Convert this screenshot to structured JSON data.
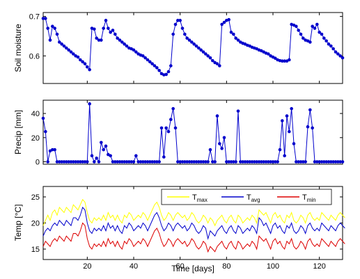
{
  "chart_data": [
    {
      "type": "line",
      "ylabel": "Soil moisture",
      "xlim": [
        1,
        130
      ],
      "ylim": [
        0.53,
        0.71
      ],
      "yticks": [
        0.6,
        0.7
      ],
      "yticklabels": [
        "0.6",
        "0.7"
      ],
      "xticks": [
        20,
        40,
        60,
        80,
        100,
        120
      ],
      "color": "#0000cc",
      "markers": true,
      "series": [
        {
          "values": [
            0.695,
            0.695,
            0.67,
            0.64,
            0.675,
            0.67,
            0.655,
            0.635,
            0.63,
            0.625,
            0.62,
            0.615,
            0.61,
            0.605,
            0.6,
            0.597,
            0.59,
            0.585,
            0.58,
            0.572,
            0.565,
            0.67,
            0.668,
            0.645,
            0.64,
            0.64,
            0.67,
            0.69,
            0.67,
            0.66,
            0.665,
            0.655,
            0.645,
            0.64,
            0.635,
            0.63,
            0.625,
            0.62,
            0.618,
            0.615,
            0.61,
            0.605,
            0.602,
            0.6,
            0.595,
            0.59,
            0.585,
            0.58,
            0.575,
            0.57,
            0.563,
            0.555,
            0.552,
            0.553,
            0.56,
            0.575,
            0.655,
            0.68,
            0.69,
            0.69,
            0.67,
            0.655,
            0.645,
            0.64,
            0.635,
            0.63,
            0.625,
            0.62,
            0.615,
            0.61,
            0.605,
            0.6,
            0.595,
            0.588,
            0.583,
            0.58,
            0.575,
            0.68,
            0.685,
            0.69,
            0.692,
            0.66,
            0.655,
            0.645,
            0.64,
            0.635,
            0.632,
            0.63,
            0.627,
            0.625,
            0.622,
            0.62,
            0.618,
            0.615,
            0.613,
            0.61,
            0.607,
            0.605,
            0.6,
            0.597,
            0.594,
            0.59,
            0.588,
            0.587,
            0.587,
            0.587,
            0.59,
            0.68,
            0.678,
            0.675,
            0.665,
            0.655,
            0.645,
            0.64,
            0.638,
            0.635,
            0.675,
            0.67,
            0.68,
            0.66,
            0.655,
            0.645,
            0.638,
            0.63,
            0.625,
            0.618,
            0.61,
            0.605,
            0.6,
            0.595
          ]
        }
      ]
    },
    {
      "type": "line",
      "ylabel": "Precip [mm]",
      "xlim": [
        1,
        130
      ],
      "ylim": [
        -2,
        51
      ],
      "yticks": [
        0,
        20,
        40
      ],
      "yticklabels": [
        "0",
        "20",
        "40"
      ],
      "xticks": [
        20,
        40,
        60,
        80,
        100,
        120
      ],
      "color": "#0000cc",
      "markers": true,
      "series": [
        {
          "values": [
            36,
            25,
            0,
            9,
            10,
            10,
            0,
            0,
            0,
            0,
            0,
            0,
            0,
            0,
            0,
            0,
            0,
            0,
            0,
            0,
            48,
            5,
            0,
            3,
            0,
            16,
            10,
            13,
            6,
            5,
            0,
            0,
            0,
            0,
            0,
            0,
            0,
            0,
            0,
            0,
            5,
            0,
            0,
            0,
            0,
            0,
            0,
            0,
            0,
            0,
            0,
            28,
            4,
            28,
            25,
            35,
            44,
            28,
            0,
            0,
            0,
            0,
            0,
            0,
            0,
            0,
            0,
            0,
            0,
            0,
            0,
            0,
            10,
            0,
            0,
            38,
            15,
            11,
            20,
            0,
            0,
            0,
            0,
            0,
            42,
            0,
            0,
            0,
            0,
            0,
            0,
            0,
            0,
            0,
            0,
            0,
            0,
            0,
            0,
            0,
            0,
            0,
            10,
            34,
            5,
            38,
            25,
            44,
            15,
            0,
            0,
            0,
            0,
            0,
            29,
            43,
            28,
            0,
            0,
            0,
            0,
            0,
            0,
            0,
            0,
            0,
            0,
            0,
            0,
            0
          ]
        }
      ]
    },
    {
      "type": "line",
      "xlabel": "Time [days]",
      "ylabel": "Temp [°C]",
      "xlim": [
        1,
        130
      ],
      "ylim": [
        13,
        27
      ],
      "yticks": [
        15,
        20,
        25
      ],
      "yticklabels": [
        "15",
        "20",
        "25"
      ],
      "xticks": [
        20,
        40,
        60,
        80,
        100,
        120
      ],
      "xticklabels": [
        "20",
        "40",
        "60",
        "80",
        "100",
        "120"
      ],
      "legend_position": "top-right",
      "series": [
        {
          "name": "T",
          "sub": "max",
          "color": "#ffff00",
          "values": [
            19.5,
            20.5,
            21.5,
            20.5,
            22,
            22.5,
            21.5,
            23,
            22.5,
            22,
            23,
            22.5,
            22,
            23.5,
            23,
            22.5,
            23.5,
            24.5,
            24,
            22,
            20.5,
            20,
            21,
            20.5,
            21,
            20.5,
            21.5,
            20.5,
            22,
            21,
            21.5,
            20.5,
            21.5,
            20.5,
            20,
            21.5,
            21,
            22,
            21.5,
            20.5,
            21,
            21.5,
            21,
            22,
            21.5,
            20.5,
            21.5,
            22.5,
            23.5,
            24,
            23,
            21.5,
            20.5,
            21,
            22,
            21.5,
            20.5,
            21.5,
            22,
            21.5,
            21,
            21.5,
            20.5,
            21,
            22,
            21.5,
            20.5,
            20,
            20.5,
            21.5,
            21,
            20,
            21,
            20.5,
            19.5,
            20.5,
            21,
            21.5,
            20.5,
            20,
            21,
            21.5,
            20.5,
            20,
            21.5,
            21,
            20,
            20.5,
            21,
            20.5,
            21.5,
            21,
            20,
            22.5,
            22,
            21.5,
            22,
            21,
            20,
            21.5,
            22,
            21,
            21.5,
            20.5,
            20,
            21.5,
            21,
            22,
            20.5,
            20,
            20.5,
            21.5,
            21,
            20,
            21.5,
            22,
            21,
            20.5,
            21,
            20.5,
            22,
            21.5,
            21,
            20.5,
            21.5,
            21,
            20.5,
            21.5,
            22,
            21.5,
            21
          ]
        },
        {
          "name": "T",
          "sub": "avg",
          "color": "#0000cc",
          "values": [
            17.5,
            18.5,
            19,
            18.5,
            19.5,
            20,
            19.5,
            20.5,
            20,
            19.5,
            20.5,
            20,
            19.5,
            21,
            21,
            20.5,
            21.5,
            23,
            22.5,
            20,
            18.5,
            18,
            19,
            18.5,
            19,
            18.5,
            19.5,
            18.5,
            20,
            19,
            19.5,
            18.5,
            19.5,
            18.5,
            18,
            19.5,
            19,
            20,
            19.5,
            18.5,
            19,
            19.5,
            19,
            20,
            19.5,
            18.5,
            19.5,
            20.5,
            21.5,
            22,
            21,
            19.5,
            18.5,
            19,
            20,
            19.5,
            18.5,
            19.5,
            20,
            19.5,
            19,
            19.5,
            18.5,
            19,
            20,
            19.5,
            18.5,
            18,
            18.5,
            19.5,
            19,
            17,
            18.5,
            18,
            17.5,
            18.5,
            19,
            19.5,
            18.5,
            18,
            19,
            19.5,
            18.5,
            18,
            19.5,
            19,
            18,
            18.5,
            19,
            18.5,
            19.5,
            19,
            18,
            21,
            20.5,
            19.5,
            20,
            19,
            18,
            19.5,
            20,
            19,
            19.5,
            18.5,
            18,
            19.5,
            19,
            20,
            18.5,
            18,
            18.5,
            19.5,
            19,
            18,
            19.5,
            20,
            19,
            18.5,
            19,
            18.5,
            20,
            19.5,
            19,
            18.5,
            19.5,
            19,
            18.5,
            19.5,
            20,
            19.5,
            19
          ]
        },
        {
          "name": "T",
          "sub": "min",
          "color": "#dd0000",
          "values": [
            15.5,
            16.5,
            16,
            15.5,
            16.5,
            17,
            16.5,
            17.5,
            17,
            16.5,
            17.5,
            17,
            16.5,
            18,
            18,
            17.5,
            18.5,
            20,
            19.5,
            17,
            15.5,
            15,
            16,
            15.5,
            16,
            15.5,
            16.5,
            15.5,
            17,
            16,
            16.5,
            15.5,
            16.5,
            15.5,
            15,
            16.5,
            16,
            17,
            16.5,
            15.5,
            16,
            16.5,
            16,
            17,
            16.5,
            15.5,
            16.5,
            17.5,
            18.5,
            19,
            18,
            16.5,
            15.5,
            16,
            17,
            16.5,
            15.5,
            16.5,
            17,
            16.5,
            16,
            16.5,
            15.5,
            16,
            17,
            16.5,
            15.5,
            15,
            15.5,
            16.5,
            16,
            14.5,
            15.5,
            15,
            14.5,
            15.5,
            16,
            16.5,
            15.5,
            15,
            16,
            16.5,
            15.5,
            15,
            16.5,
            16,
            15,
            15.5,
            16,
            15.5,
            16.5,
            16,
            15,
            17.5,
            17,
            16.5,
            17,
            16,
            15,
            16.5,
            17,
            16,
            16.5,
            15.5,
            15,
            16.5,
            16,
            17,
            15.5,
            15,
            15.5,
            16.5,
            16,
            15,
            16.5,
            17,
            16,
            15.5,
            16,
            15.5,
            17,
            16.5,
            16,
            15.5,
            16.5,
            16,
            15.5,
            16.5,
            17,
            16.5,
            16
          ]
        }
      ]
    }
  ]
}
